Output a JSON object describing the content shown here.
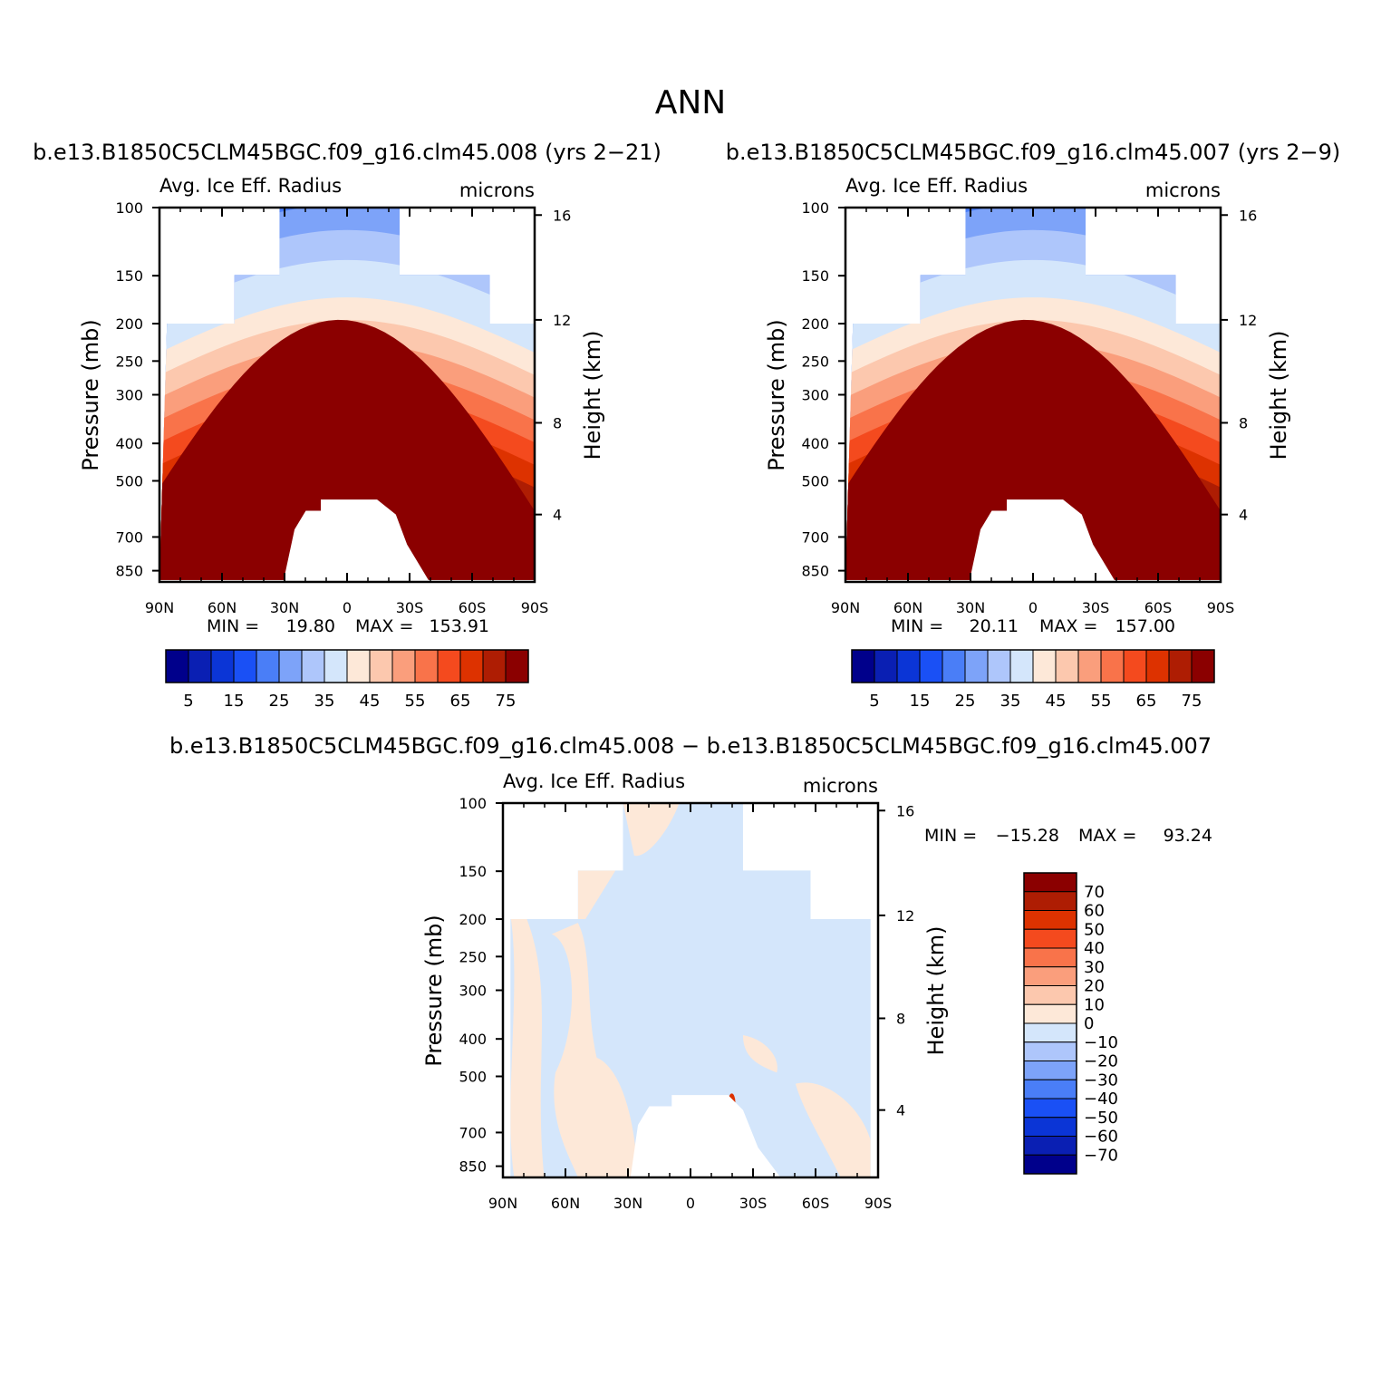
{
  "page_title": "ANN",
  "palette": {
    "abs": [
      "#00008b",
      "#0a1fb3",
      "#0b35d6",
      "#1a50f5",
      "#4a7ef7",
      "#7da3f9",
      "#aec6fb",
      "#d4e6fb",
      "#fde8d8",
      "#fcc8ae",
      "#fa9e7c",
      "#f9734a",
      "#f44a1e",
      "#dd3200",
      "#ae1d03",
      "#8b0000"
    ],
    "diff": [
      "#00008b",
      "#0a1fb3",
      "#0b35d6",
      "#1a50f5",
      "#4a7ef7",
      "#7da3f9",
      "#aec6fb",
      "#d4e6fb",
      "#fde8d8",
      "#fcc8ae",
      "#fa9e7c",
      "#f9734a",
      "#f44a1e",
      "#dd3200",
      "#ae1d03",
      "#8b0000"
    ]
  },
  "chart_data": [
    {
      "type": "heatmap",
      "case_title": "b.e13.B1850C5CLM45BGC.f09_g16.clm45.008 (yrs 2−21)",
      "title": "Avg. Ice Eff. Radius",
      "units": "microns",
      "ylabel": "Pressure (mb)",
      "ylabel_right": "Height (km)",
      "x_ticks": [
        "90N",
        "60N",
        "30N",
        "0",
        "30S",
        "60S",
        "90S"
      ],
      "y_ticks": [
        "100",
        "150",
        "200",
        "250",
        "300",
        "400",
        "500",
        "700",
        "850"
      ],
      "y_ticks_right": [
        "16",
        "12",
        "8",
        "4"
      ],
      "min_label": "MIN =",
      "min_value": "19.80",
      "max_label": "MAX =",
      "max_value": "153.91",
      "colorbar_labels": [
        "5",
        "15",
        "25",
        "35",
        "45",
        "55",
        "65",
        "75"
      ]
    },
    {
      "type": "heatmap",
      "case_title": "b.e13.B1850C5CLM45BGC.f09_g16.clm45.007 (yrs 2−9)",
      "title": "Avg. Ice Eff. Radius",
      "units": "microns",
      "ylabel": "Pressure (mb)",
      "ylabel_right": "Height (km)",
      "x_ticks": [
        "90N",
        "60N",
        "30N",
        "0",
        "30S",
        "60S",
        "90S"
      ],
      "y_ticks": [
        "100",
        "150",
        "200",
        "250",
        "300",
        "400",
        "500",
        "700",
        "850"
      ],
      "y_ticks_right": [
        "16",
        "12",
        "8",
        "4"
      ],
      "min_label": "MIN =",
      "min_value": "20.11",
      "max_label": "MAX =",
      "max_value": "157.00",
      "colorbar_labels": [
        "5",
        "15",
        "25",
        "35",
        "45",
        "55",
        "65",
        "75"
      ]
    },
    {
      "type": "heatmap",
      "case_title": "b.e13.B1850C5CLM45BGC.f09_g16.clm45.008 − b.e13.B1850C5CLM45BGC.f09_g16.clm45.007",
      "title": "Avg. Ice Eff. Radius",
      "units": "microns",
      "ylabel": "Pressure (mb)",
      "ylabel_right": "Height (km)",
      "x_ticks": [
        "90N",
        "60N",
        "30N",
        "0",
        "30S",
        "60S",
        "90S"
      ],
      "y_ticks": [
        "100",
        "150",
        "200",
        "250",
        "300",
        "400",
        "500",
        "700",
        "850"
      ],
      "y_ticks_right": [
        "16",
        "12",
        "8",
        "4"
      ],
      "min_label": "MIN =",
      "min_value": "−15.28",
      "max_label": "MAX =",
      "max_value": "93.24",
      "colorbar_labels": [
        "70",
        "60",
        "50",
        "40",
        "30",
        "20",
        "10",
        "0",
        "−10",
        "−20",
        "−30",
        "−40",
        "−50",
        "−60",
        "−70"
      ]
    }
  ]
}
